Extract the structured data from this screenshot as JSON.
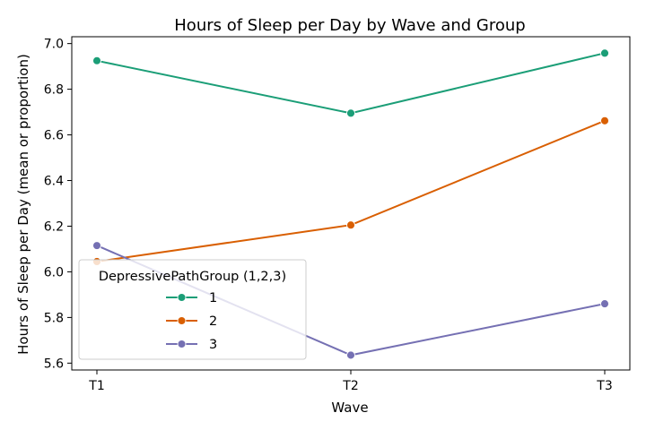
{
  "chart_data": {
    "type": "line",
    "title": "Hours of Sleep per Day by Wave and Group",
    "xlabel": "Wave",
    "ylabel": "Hours of Sleep per Day (mean or proportion)",
    "categories": [
      "T1",
      "T2",
      "T3"
    ],
    "ylim": [
      5.57,
      7.03
    ],
    "yticks": [
      5.6,
      5.8,
      6.0,
      6.2,
      6.4,
      6.6,
      6.8,
      7.0
    ],
    "grid": false,
    "legend": {
      "title": "DepressivePathGroup (1,2,3)",
      "placement": "lower-left"
    },
    "series": [
      {
        "name": "1",
        "color": "#1b9e77",
        "values": [
          6.925,
          6.695,
          6.958
        ]
      },
      {
        "name": "2",
        "color": "#d95f02",
        "values": [
          6.045,
          6.205,
          6.662
        ]
      },
      {
        "name": "3",
        "color": "#7570b3",
        "values": [
          6.115,
          5.635,
          5.86
        ]
      }
    ]
  }
}
